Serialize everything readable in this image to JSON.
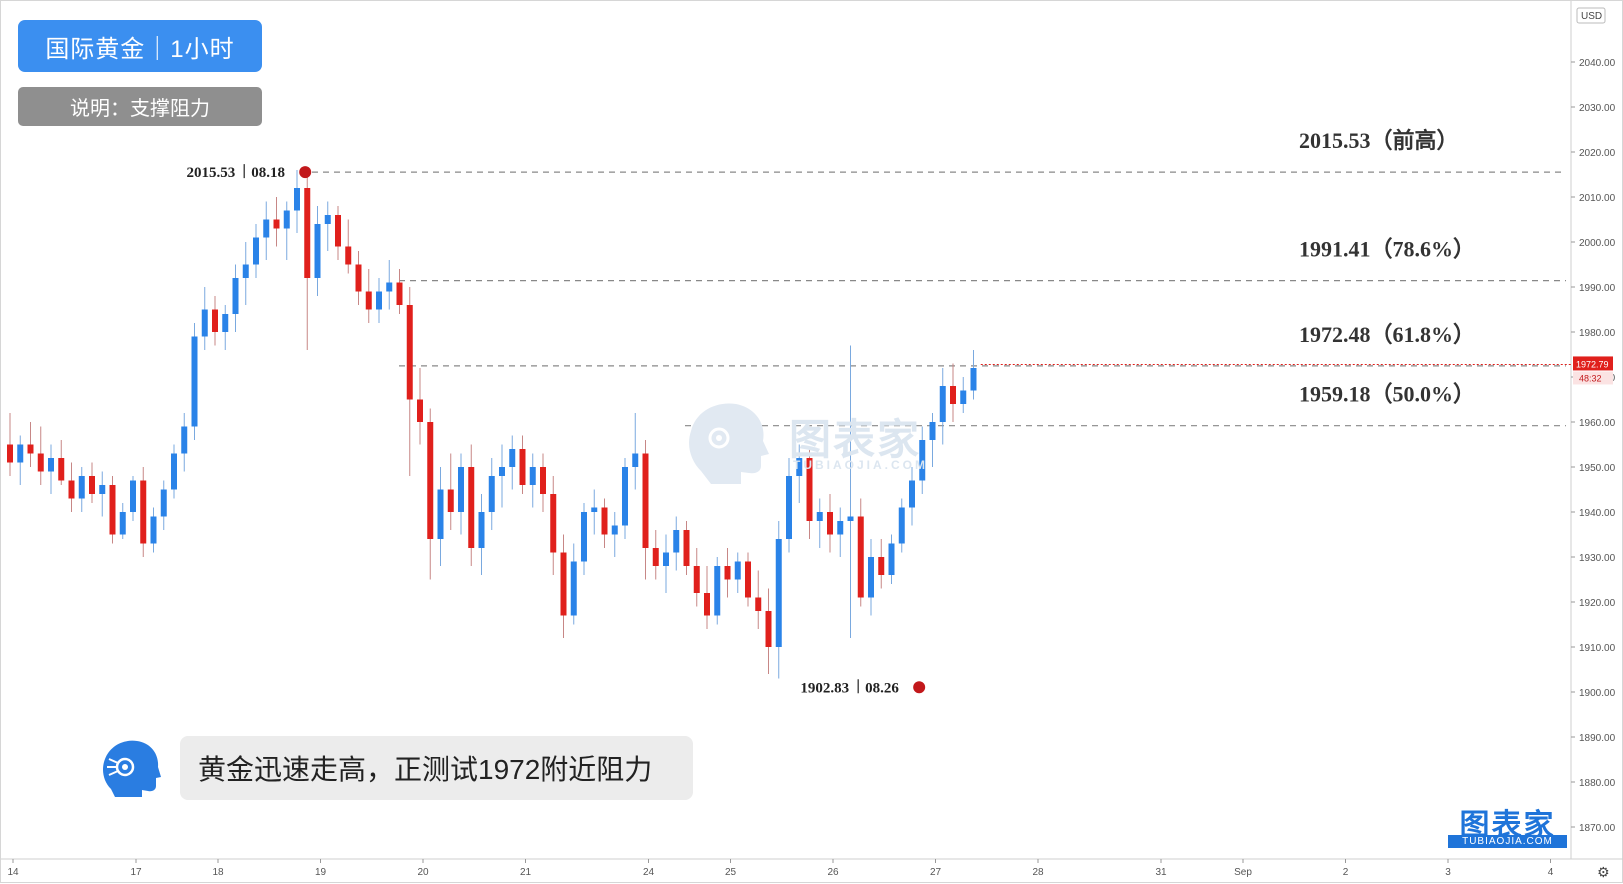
{
  "chart_data": {
    "type": "candlestick",
    "header": {
      "title_chip": "国际黄金｜1小时",
      "note_chip": "说明：支撑阻力"
    },
    "currency": "USD",
    "y_axis": {
      "min": 1865,
      "max": 2050,
      "ticks": [
        "2040.00",
        "2030.00",
        "2020.00",
        "2010.00",
        "2000.00",
        "1990.00",
        "1980.00",
        "1970.00",
        "1960.00",
        "1950.00",
        "1940.00",
        "1930.00",
        "1920.00",
        "1910.00",
        "1900.00",
        "1890.00",
        "1880.00",
        "1870.00"
      ]
    },
    "x_axis": {
      "ticks": [
        {
          "label": "14",
          "t": 0
        },
        {
          "label": "17",
          "t": 12
        },
        {
          "label": "18",
          "t": 20
        },
        {
          "label": "19",
          "t": 30
        },
        {
          "label": "20",
          "t": 40
        },
        {
          "label": "21",
          "t": 50
        },
        {
          "label": "24",
          "t": 62
        },
        {
          "label": "25",
          "t": 70
        },
        {
          "label": "26",
          "t": 80
        },
        {
          "label": "27",
          "t": 90
        },
        {
          "label": "28",
          "t": 100
        },
        {
          "label": "31",
          "t": 112
        },
        {
          "label": "Sep",
          "t": 120
        },
        {
          "label": "2",
          "t": 130
        },
        {
          "label": "3",
          "t": 140
        },
        {
          "label": "4",
          "t": 150
        }
      ]
    },
    "levels": [
      {
        "value": 2015.53,
        "label": "2015.53（前高）"
      },
      {
        "value": 1991.41,
        "label": "1991.41（78.6%）"
      },
      {
        "value": 1972.48,
        "label": "1972.48（61.8%）"
      },
      {
        "value": 1959.18,
        "label": "1959.18（50.0%）"
      }
    ],
    "price_tag": {
      "value": "1972.79",
      "countdown": "48:32"
    },
    "extremes": [
      {
        "value": 2015.53,
        "price": "2015.53",
        "date": "08.18",
        "t": 28.8
      },
      {
        "value": 1902.83,
        "price": "1902.83",
        "date": "08.26",
        "t": 88.7
      }
    ],
    "candles": [
      [
        1955,
        1962,
        1948,
        1951
      ],
      [
        1951,
        1957,
        1946,
        1955
      ],
      [
        1955,
        1960,
        1950,
        1953
      ],
      [
        1953,
        1959,
        1946,
        1949
      ],
      [
        1949,
        1955,
        1944,
        1952
      ],
      [
        1952,
        1956,
        1946,
        1947
      ],
      [
        1947,
        1951,
        1940,
        1943
      ],
      [
        1943,
        1950,
        1940,
        1948
      ],
      [
        1948,
        1951,
        1942,
        1944
      ],
      [
        1944,
        1949,
        1939,
        1946
      ],
      [
        1946,
        1948,
        1933,
        1935
      ],
      [
        1935,
        1942,
        1934,
        1940
      ],
      [
        1940,
        1948,
        1938,
        1947
      ],
      [
        1947,
        1950,
        1930,
        1933
      ],
      [
        1933,
        1941,
        1931,
        1939
      ],
      [
        1939,
        1947,
        1936,
        1945
      ],
      [
        1945,
        1955,
        1943,
        1953
      ],
      [
        1953,
        1962,
        1949,
        1959
      ],
      [
        1959,
        1982,
        1956,
        1979
      ],
      [
        1979,
        1990,
        1976,
        1985
      ],
      [
        1985,
        1988,
        1977,
        1980
      ],
      [
        1980,
        1986,
        1976,
        1984
      ],
      [
        1984,
        1995,
        1980,
        1992
      ],
      [
        1992,
        2000,
        1986,
        1995
      ],
      [
        1995,
        2004,
        1992,
        2001
      ],
      [
        2001,
        2009,
        1996,
        2005
      ],
      [
        2005,
        2010,
        1999,
        2003
      ],
      [
        2003,
        2009,
        1996,
        2007
      ],
      [
        2007,
        2016,
        2002,
        2012
      ],
      [
        2012,
        2015,
        1976,
        1992
      ],
      [
        1992,
        2008,
        1988,
        2004
      ],
      [
        2004,
        2009,
        1998,
        2006
      ],
      [
        2006,
        2008,
        1996,
        1999
      ],
      [
        1999,
        2005,
        1993,
        1995
      ],
      [
        1995,
        1998,
        1986,
        1989
      ],
      [
        1989,
        1994,
        1982,
        1985
      ],
      [
        1985,
        1992,
        1982,
        1989
      ],
      [
        1989,
        1996,
        1985,
        1991
      ],
      [
        1991,
        1994,
        1984,
        1986
      ],
      [
        1986,
        1990,
        1948,
        1965
      ],
      [
        1965,
        1972,
        1955,
        1960
      ],
      [
        1960,
        1963,
        1925,
        1934
      ],
      [
        1934,
        1950,
        1928,
        1945
      ],
      [
        1945,
        1953,
        1936,
        1940
      ],
      [
        1940,
        1953,
        1935,
        1950
      ],
      [
        1950,
        1955,
        1928,
        1932
      ],
      [
        1932,
        1944,
        1926,
        1940
      ],
      [
        1940,
        1952,
        1936,
        1948
      ],
      [
        1948,
        1955,
        1941,
        1950
      ],
      [
        1950,
        1957,
        1945,
        1954
      ],
      [
        1954,
        1957,
        1944,
        1946
      ],
      [
        1946,
        1953,
        1941,
        1950
      ],
      [
        1950,
        1953,
        1940,
        1944
      ],
      [
        1944,
        1948,
        1926,
        1931
      ],
      [
        1931,
        1935,
        1912,
        1917
      ],
      [
        1917,
        1933,
        1915,
        1929
      ],
      [
        1929,
        1942,
        1926,
        1940
      ],
      [
        1940,
        1945,
        1935,
        1941
      ],
      [
        1941,
        1943,
        1932,
        1935
      ],
      [
        1935,
        1940,
        1930,
        1937
      ],
      [
        1937,
        1952,
        1934,
        1950
      ],
      [
        1950,
        1962,
        1945,
        1953
      ],
      [
        1953,
        1956,
        1925,
        1932
      ],
      [
        1932,
        1936,
        1925,
        1928
      ],
      [
        1928,
        1935,
        1922,
        1931
      ],
      [
        1931,
        1939,
        1927,
        1936
      ],
      [
        1936,
        1938,
        1926,
        1928
      ],
      [
        1928,
        1932,
        1919,
        1922
      ],
      [
        1922,
        1928,
        1914,
        1917
      ],
      [
        1917,
        1930,
        1915,
        1928
      ],
      [
        1928,
        1932,
        1921,
        1925
      ],
      [
        1925,
        1931,
        1922,
        1929
      ],
      [
        1929,
        1931,
        1919,
        1921
      ],
      [
        1921,
        1927,
        1914,
        1918
      ],
      [
        1918,
        1923,
        1904,
        1910
      ],
      [
        1910,
        1938,
        1903,
        1934
      ],
      [
        1934,
        1952,
        1931,
        1948
      ],
      [
        1948,
        1955,
        1942,
        1952
      ],
      [
        1952,
        1954,
        1934,
        1938
      ],
      [
        1938,
        1943,
        1932,
        1940
      ],
      [
        1940,
        1944,
        1931,
        1935
      ],
      [
        1935,
        1941,
        1930,
        1938
      ],
      [
        1938,
        1977,
        1912,
        1939
      ],
      [
        1939,
        1943,
        1919,
        1921
      ],
      [
        1921,
        1934,
        1917,
        1930
      ],
      [
        1930,
        1934,
        1923,
        1926
      ],
      [
        1926,
        1935,
        1924,
        1933
      ],
      [
        1933,
        1943,
        1931,
        1941
      ],
      [
        1941,
        1950,
        1937,
        1947
      ],
      [
        1947,
        1959,
        1944,
        1956
      ],
      [
        1956,
        1962,
        1950,
        1960
      ],
      [
        1960,
        1972,
        1955,
        1968
      ],
      [
        1968,
        1973,
        1960,
        1964
      ],
      [
        1964,
        1970,
        1962,
        1967
      ],
      [
        1967,
        1976,
        1965,
        1972
      ]
    ]
  }
}
